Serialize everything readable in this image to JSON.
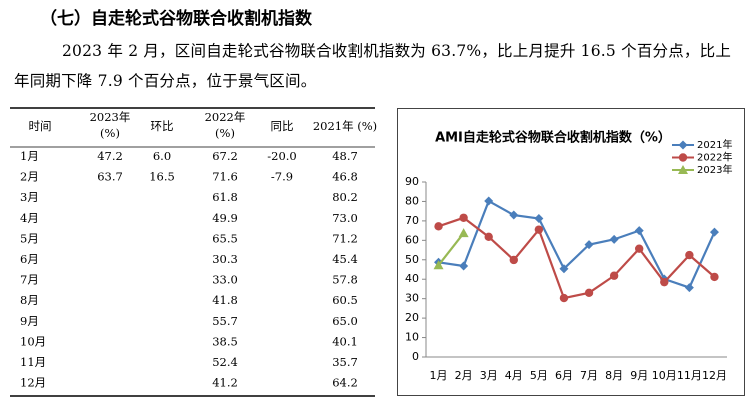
{
  "heading": "（七）自走轮式谷物联合收割机指数",
  "paragraph": "2023 年 2 月，区间自走轮式谷物联合收割机指数为 63.7%，比上月提升 16.5 个百分点，比上年同期下降 7.9 个百分点，位于景气区间。",
  "table": {
    "header": [
      "时间",
      "2023年\n(%)",
      "环比",
      "2022年\n(%)",
      "同比",
      "2021年 (%)"
    ],
    "rows": [
      [
        "1月",
        "47.2",
        "6.0",
        "67.2",
        "-20.0",
        "48.7"
      ],
      [
        "2月",
        "63.7",
        "16.5",
        "71.6",
        "-7.9",
        "46.8"
      ],
      [
        "3月",
        null,
        null,
        "61.8",
        null,
        "80.2"
      ],
      [
        "4月",
        null,
        null,
        "49.9",
        null,
        "73.0"
      ],
      [
        "5月",
        null,
        null,
        "65.5",
        null,
        "71.2"
      ],
      [
        "6月",
        null,
        null,
        "30.3",
        null,
        "45.4"
      ],
      [
        "7月",
        null,
        null,
        "33.0",
        null,
        "57.8"
      ],
      [
        "8月",
        null,
        null,
        "41.8",
        null,
        "60.5"
      ],
      [
        "9月",
        null,
        null,
        "55.7",
        null,
        "65.0"
      ],
      [
        "10月",
        null,
        null,
        "38.5",
        null,
        "40.1"
      ],
      [
        "11月",
        null,
        null,
        "52.4",
        null,
        "35.7"
      ],
      [
        "12月",
        null,
        null,
        "41.2",
        null,
        "64.2"
      ]
    ]
  },
  "chart_data": {
    "type": "line",
    "title": "AMI自走轮式谷物联合收割机指数（%）",
    "categories": [
      "1月",
      "2月",
      "3月",
      "4月",
      "5月",
      "6月",
      "7月",
      "8月",
      "9月",
      "10月",
      "11月",
      "12月"
    ],
    "series": [
      {
        "name": "2021年",
        "color": "#4a7ebb",
        "marker": "diamond",
        "values": [
          48.7,
          46.8,
          80.2,
          73.0,
          71.2,
          45.4,
          57.8,
          60.5,
          65.0,
          40.1,
          35.7,
          64.2
        ]
      },
      {
        "name": "2022年",
        "color": "#be4b48",
        "marker": "circle",
        "values": [
          67.2,
          71.6,
          61.8,
          49.9,
          65.5,
          30.3,
          33.0,
          41.8,
          55.7,
          38.5,
          52.4,
          41.2
        ]
      },
      {
        "name": "2023年",
        "color": "#98b954",
        "marker": "triangle",
        "values": [
          47.2,
          63.7,
          null,
          null,
          null,
          null,
          null,
          null,
          null,
          null,
          null,
          null
        ]
      }
    ],
    "ylim": [
      0,
      90
    ],
    "yticks": [
      0,
      10,
      20,
      30,
      40,
      50,
      60,
      70,
      80,
      90
    ],
    "legend": "top-right"
  }
}
